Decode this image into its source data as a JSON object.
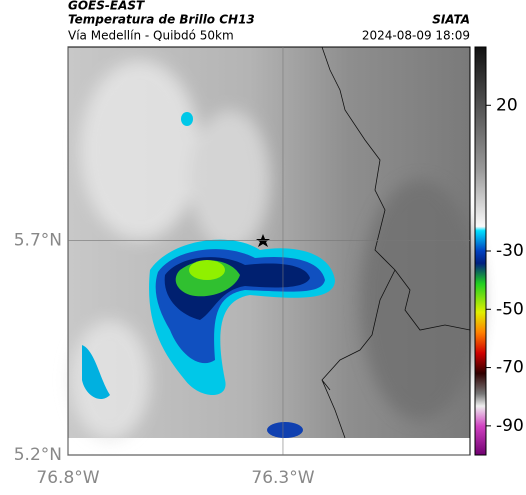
{
  "header": {
    "satellite": "GOES-EAST",
    "product": "Temperatura de Brillo CH13",
    "region": "Vía Medellín - Quibdó 50km",
    "source": "SIATA",
    "datetime": "2024-08-09 18:09"
  },
  "map": {
    "latlim": [
      5.2,
      6.15
    ],
    "lonlim": [
      -76.8,
      -75.865
    ],
    "lat_ticks": [
      {
        "value": 5.2,
        "label": "5.2°N"
      },
      {
        "value": 5.7,
        "label": "5.7°N"
      }
    ],
    "lon_ticks": [
      {
        "value": -76.8,
        "label": "76.8°W"
      },
      {
        "value": -76.3,
        "label": "76.3°W"
      }
    ]
  },
  "colorbar": {
    "lim": [
      40,
      -100
    ],
    "ticks": [
      20,
      -30,
      -50,
      -70,
      -90
    ]
  }
}
